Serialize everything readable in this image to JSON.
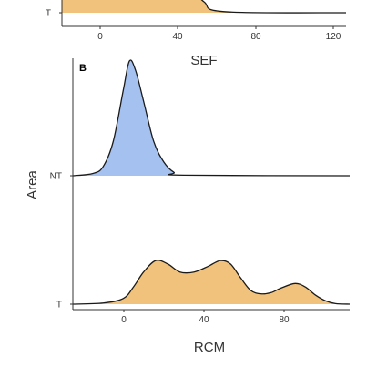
{
  "chart_data": [
    {
      "type": "area",
      "subtype": "ridgeline",
      "partial": true,
      "xlabel": "SEF",
      "ylabel": "",
      "xlim": [
        -20,
        120
      ],
      "x_ticks": [
        "0",
        "40",
        "80",
        "120"
      ],
      "y_categories": [
        "T"
      ],
      "series": [
        {
          "name": "T",
          "color": "#f0c27b",
          "points": [
            [
              -20,
              0.3
            ],
            [
              0,
              0.6
            ],
            [
              20,
              0.8
            ],
            [
              40,
              0.55
            ],
            [
              50,
              0.2
            ],
            [
              60,
              0.02
            ],
            [
              120,
              0
            ]
          ]
        }
      ]
    },
    {
      "type": "area",
      "subtype": "ridgeline",
      "panel_label": "B",
      "xlabel": "RCM",
      "ylabel": "Area",
      "xlim": [
        -25,
        112
      ],
      "x_ticks": [
        "0",
        "40",
        "80"
      ],
      "y_categories": [
        "T",
        "NT"
      ],
      "series": [
        {
          "name": "NT",
          "color": "#a4c1ef",
          "points": [
            [
              -25,
              0
            ],
            [
              -15,
              0.02
            ],
            [
              -10,
              0.08
            ],
            [
              -5,
              0.3
            ],
            [
              0,
              0.75
            ],
            [
              3,
              1.0
            ],
            [
              6,
              0.92
            ],
            [
              10,
              0.65
            ],
            [
              15,
              0.3
            ],
            [
              20,
              0.12
            ],
            [
              25,
              0.03
            ],
            [
              30,
              0.005
            ],
            [
              112,
              0
            ]
          ]
        },
        {
          "name": "T",
          "color": "#f0c27b",
          "points": [
            [
              -25,
              0
            ],
            [
              -10,
              0.01
            ],
            [
              0,
              0.05
            ],
            [
              5,
              0.15
            ],
            [
              10,
              0.28
            ],
            [
              16,
              0.38
            ],
            [
              22,
              0.35
            ],
            [
              28,
              0.28
            ],
            [
              35,
              0.28
            ],
            [
              42,
              0.33
            ],
            [
              48,
              0.38
            ],
            [
              53,
              0.35
            ],
            [
              58,
              0.23
            ],
            [
              63,
              0.12
            ],
            [
              68,
              0.09
            ],
            [
              73,
              0.1
            ],
            [
              78,
              0.14
            ],
            [
              85,
              0.18
            ],
            [
              90,
              0.15
            ],
            [
              95,
              0.08
            ],
            [
              100,
              0.03
            ],
            [
              105,
              0.005
            ],
            [
              112,
              0
            ]
          ]
        }
      ]
    }
  ]
}
